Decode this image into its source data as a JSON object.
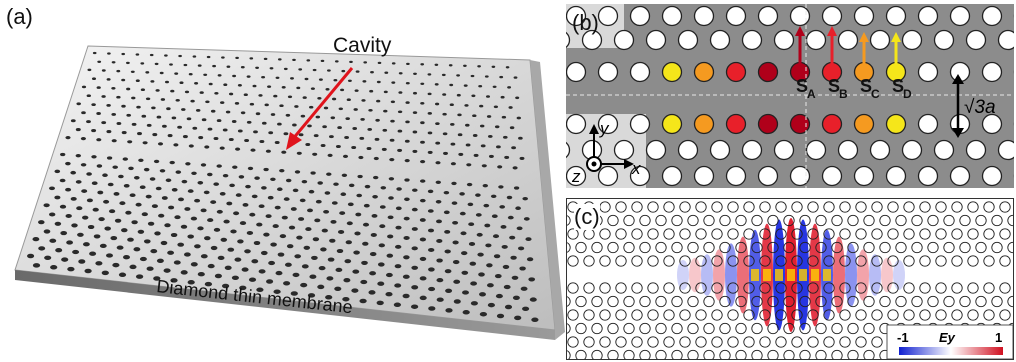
{
  "panel_a": {
    "label": "(a)",
    "cavity_label": "Cavity",
    "membrane_label": "Diamond thin membrane"
  },
  "panel_b": {
    "label": "(b)",
    "shift_labels": [
      "S",
      "S",
      "S",
      "S"
    ],
    "shift_subscripts": [
      "A",
      "B",
      "C",
      "D"
    ],
    "shift_colors": [
      "#b0001a",
      "#e8202a",
      "#f59a20",
      "#f5e61a"
    ],
    "lattice_spacing_label": "√3a",
    "axes": {
      "x": "x",
      "y": "y",
      "z": "z"
    }
  },
  "panel_c": {
    "label": "(c)",
    "colorbar": {
      "min_label": "-1",
      "title": "Ey",
      "max_label": "1"
    }
  },
  "colors": {
    "membrane_fill": "#dcdcdc",
    "background_gray": "#8c8c8c",
    "arrow_red": "#e0141c"
  }
}
